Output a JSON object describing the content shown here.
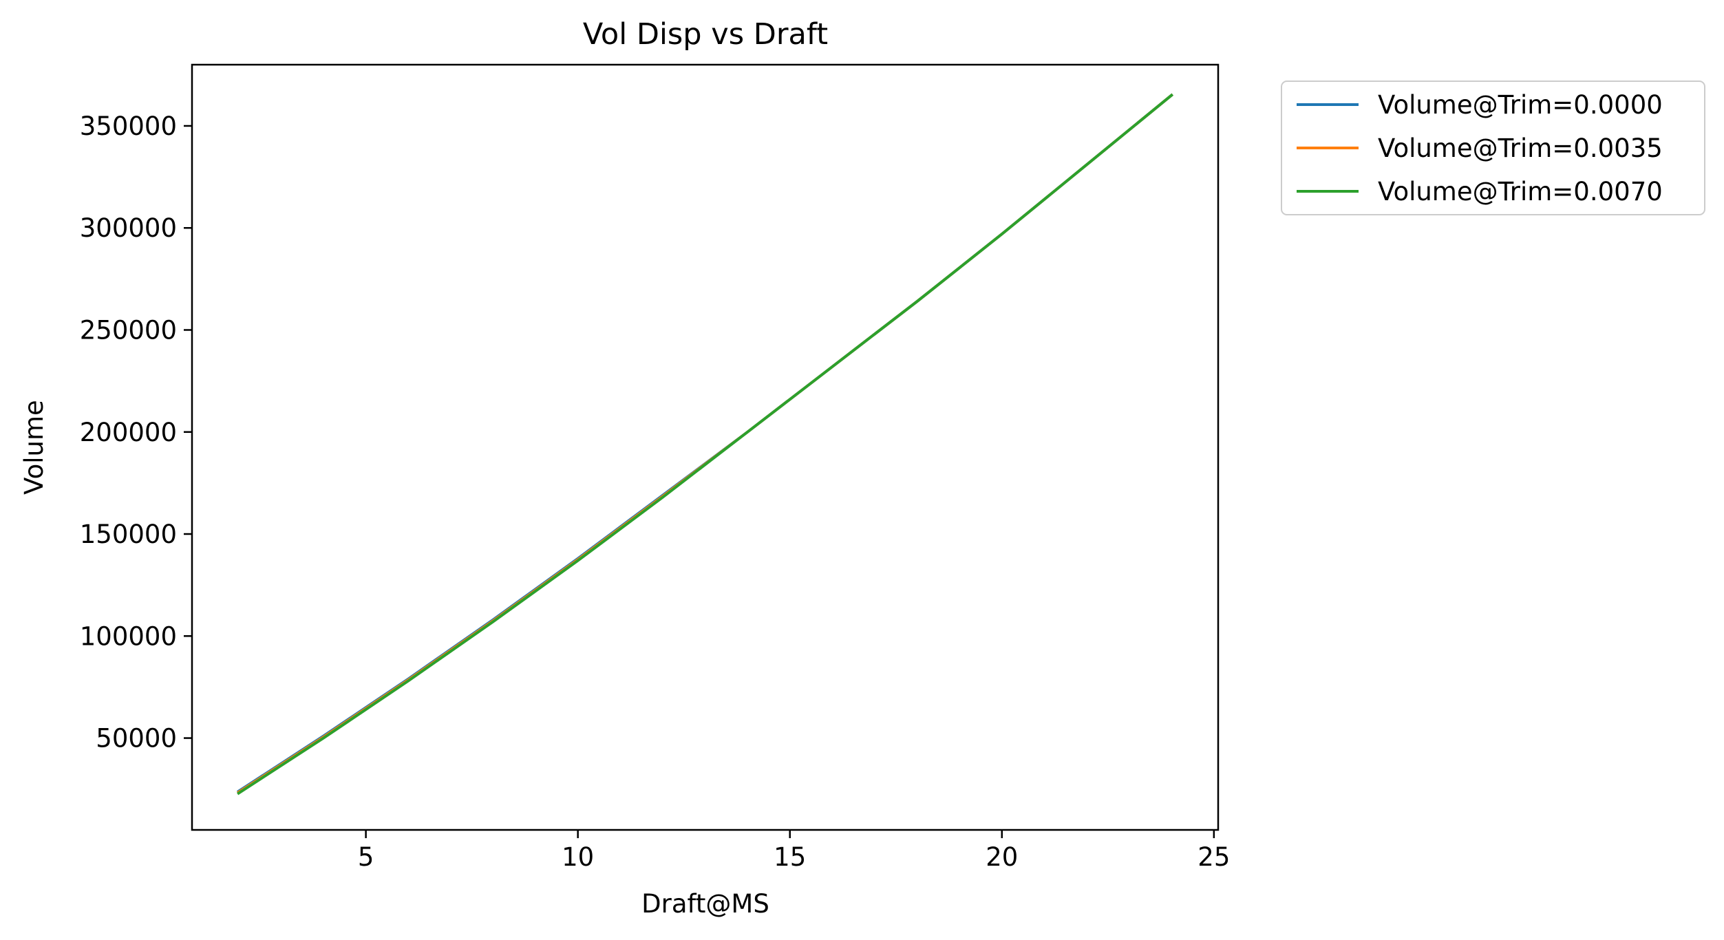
{
  "chart_data": {
    "type": "line",
    "title": "Vol Disp vs Draft",
    "xlabel": "Draft@MS",
    "ylabel": "Volume",
    "xlim": [
      0.9,
      25.1
    ],
    "ylim": [
      5000,
      380000
    ],
    "xticks": [
      5,
      10,
      15,
      20,
      25
    ],
    "xtick_labels": [
      "5",
      "10",
      "15",
      "20",
      "25"
    ],
    "yticks": [
      50000,
      100000,
      150000,
      200000,
      250000,
      300000,
      350000
    ],
    "ytick_labels": [
      "50000",
      "100000",
      "150000",
      "200000",
      "250000",
      "300000",
      "350000"
    ],
    "grid": false,
    "legend_position": "outside-top-right",
    "x": [
      2,
      4,
      6,
      8,
      10,
      12,
      14,
      16,
      18,
      20,
      22,
      24
    ],
    "series": [
      {
        "name": "Volume@Trim=0.0000",
        "color": "#1f77b4",
        "values": [
          24000,
          51000,
          79000,
          108000,
          138000,
          169000,
          200000,
          232000,
          264000,
          297000,
          331000,
          365000
        ]
      },
      {
        "name": "Volume@Trim=0.0035",
        "color": "#ff7f0e",
        "values": [
          23500,
          50500,
          78500,
          107500,
          137500,
          168500,
          200000,
          232000,
          264000,
          297000,
          331000,
          365000
        ]
      },
      {
        "name": "Volume@Trim=0.0070",
        "color": "#2ca02c",
        "values": [
          23000,
          50000,
          78000,
          107000,
          137000,
          168000,
          200000,
          232000,
          264000,
          297000,
          331000,
          365000
        ]
      }
    ]
  }
}
